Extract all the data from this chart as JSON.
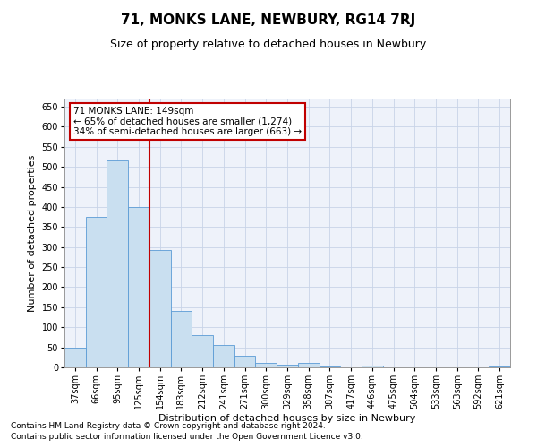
{
  "title": "71, MONKS LANE, NEWBURY, RG14 7RJ",
  "subtitle": "Size of property relative to detached houses in Newbury",
  "xlabel": "Distribution of detached houses by size in Newbury",
  "ylabel": "Number of detached properties",
  "footnote1": "Contains HM Land Registry data © Crown copyright and database right 2024.",
  "footnote2": "Contains public sector information licensed under the Open Government Licence v3.0.",
  "categories": [
    "37sqm",
    "66sqm",
    "95sqm",
    "125sqm",
    "154sqm",
    "183sqm",
    "212sqm",
    "241sqm",
    "271sqm",
    "300sqm",
    "329sqm",
    "358sqm",
    "387sqm",
    "417sqm",
    "446sqm",
    "475sqm",
    "504sqm",
    "533sqm",
    "563sqm",
    "592sqm",
    "621sqm"
  ],
  "values": [
    50,
    375,
    515,
    400,
    293,
    140,
    80,
    55,
    30,
    12,
    7,
    12,
    3,
    0,
    5,
    0,
    0,
    0,
    0,
    0,
    3
  ],
  "bar_color": "#c9dff0",
  "bar_edge_color": "#5b9bd5",
  "vline_color": "#c00000",
  "annotation_text": "71 MONKS LANE: 149sqm\n← 65% of detached houses are smaller (1,274)\n34% of semi-detached houses are larger (663) →",
  "annotation_box_color": "#ffffff",
  "annotation_box_edge": "#c00000",
  "ylim": [
    0,
    670
  ],
  "yticks": [
    0,
    50,
    100,
    150,
    200,
    250,
    300,
    350,
    400,
    450,
    500,
    550,
    600,
    650
  ],
  "grid_color": "#c8d4e8",
  "bg_color": "#eef2fa",
  "title_fontsize": 11,
  "subtitle_fontsize": 9,
  "tick_fontsize": 7,
  "label_fontsize": 8,
  "footnote_fontsize": 6.5
}
